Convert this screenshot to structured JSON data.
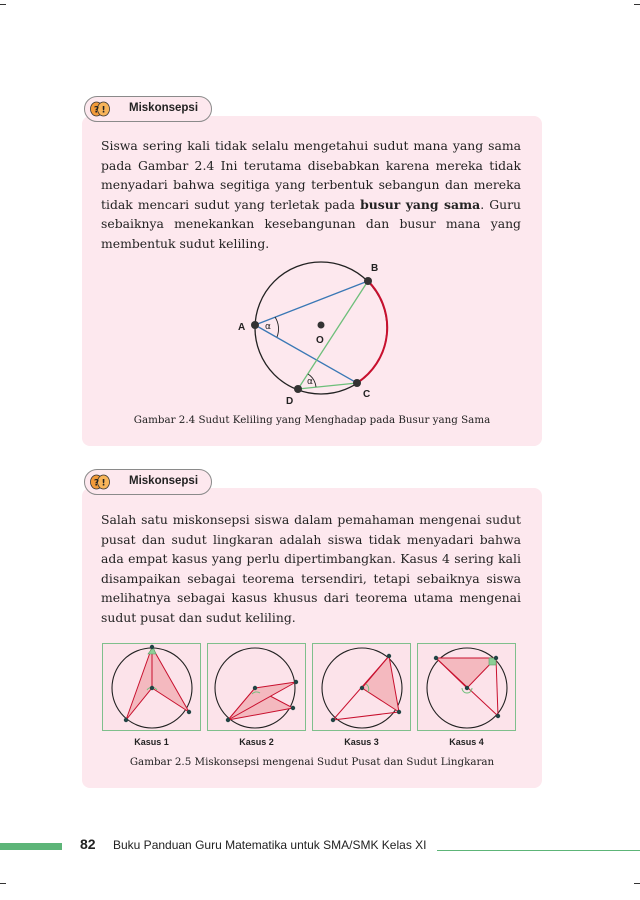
{
  "box1": {
    "label": "Miskonsepsi",
    "paragraph_before_bold": "Siswa sering kali tidak selalu mengetahui sudut mana yang sama pada Gambar 2.4 Ini terutama disebabkan karena mereka tidak menyadari bahwa segitiga yang terbentuk sebangun dan mereka tidak mencari sudut yang terletak pada ",
    "paragraph_bold": "busur yang sama",
    "paragraph_after_bold": ". Guru sebaiknya menekankan kesebangunan dan busur mana yang membentuk sudut keliling.",
    "figure": {
      "point_labels": {
        "A": "A",
        "B": "B",
        "C": "C",
        "D": "D",
        "O": "O"
      },
      "angle_labels": [
        "α",
        "α"
      ],
      "colors": {
        "chord_blue": "#3a78b5",
        "chord_green": "#6dbf7a",
        "arc_red": "#c8102e"
      }
    },
    "caption": "Gambar 2.4 Sudut Keliling yang Menghadap pada Busur yang Sama"
  },
  "box2": {
    "label": "Miskonsepsi",
    "paragraph": "Salah satu miskonsepsi siswa dalam pemahaman mengenai sudut pusat dan sudut lingkaran adalah siswa tidak menyadari bahwa ada empat kasus yang perlu dipertimbangkan. Kasus 4 sering kali disampaikan sebagai teorema tersendiri, tetapi sebaiknya siswa melihatnya sebagai kasus khusus dari teorema utama mengenai sudut pusat dan sudut keliling.",
    "cases": [
      {
        "label": "Kasus 1"
      },
      {
        "label": "Kasus 2"
      },
      {
        "label": "Kasus 3"
      },
      {
        "label": "Kasus 4"
      }
    ],
    "caption": "Gambar 2.5 Miskonsepsi mengenai Sudut Pusat dan Sudut Lingkaran"
  },
  "footer": {
    "page_number": "82",
    "title": "Buku Panduan Guru Matematika untuk SMA/SMK Kelas XI"
  },
  "colors": {
    "box_bg": "#fde8ee",
    "accent_green": "#5db578",
    "icon_orange": "#f29a3a"
  },
  "icons": {
    "label_icon": "question-exclamation-bubbles-icon"
  }
}
